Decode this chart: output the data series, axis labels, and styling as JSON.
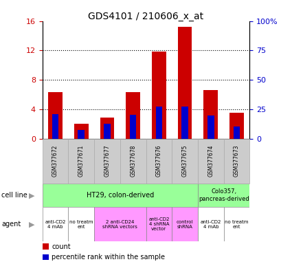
{
  "title": "GDS4101 / 210606_x_at",
  "samples": [
    "GSM377672",
    "GSM377671",
    "GSM377677",
    "GSM377678",
    "GSM377676",
    "GSM377675",
    "GSM377674",
    "GSM377673"
  ],
  "count_values": [
    6.3,
    2.0,
    2.9,
    6.3,
    11.9,
    15.2,
    6.6,
    3.5
  ],
  "percentile_values": [
    21.0,
    7.5,
    12.5,
    20.0,
    27.0,
    27.0,
    19.5,
    10.5
  ],
  "ylim_left": [
    0,
    16
  ],
  "ylim_right": [
    0,
    100
  ],
  "yticks_left": [
    0,
    4,
    8,
    12,
    16
  ],
  "yticks_right": [
    0,
    25,
    50,
    75,
    100
  ],
  "yticklabels_right": [
    "0",
    "25",
    "50",
    "75",
    "100%"
  ],
  "bar_color": "#cc0000",
  "percentile_color": "#0000cc",
  "grid_color": "#000000",
  "cell_line_groups": [
    {
      "label": "HT29, colon-derived",
      "start": 0,
      "end": 5,
      "color": "#99ff99"
    },
    {
      "label": "Colo357,\npancreas-derived",
      "start": 6,
      "end": 7,
      "color": "#99ff99"
    }
  ],
  "agent_groups": [
    {
      "label": "anti-CD2\n4 mAb",
      "start": 0,
      "end": 0,
      "color": "#ffffff"
    },
    {
      "label": "no treatm\nent",
      "start": 1,
      "end": 1,
      "color": "#ffffff"
    },
    {
      "label": "2 anti-CD24\nshRNA vectors",
      "start": 2,
      "end": 3,
      "color": "#ff99ff"
    },
    {
      "label": "anti-CD2\n4 shRNA\nvector",
      "start": 4,
      "end": 4,
      "color": "#ff99ff"
    },
    {
      "label": "control\nshRNA",
      "start": 5,
      "end": 5,
      "color": "#ff99ff"
    },
    {
      "label": "anti-CD2\n4 mAb",
      "start": 6,
      "end": 6,
      "color": "#ffffff"
    },
    {
      "label": "no treatm\nent",
      "start": 7,
      "end": 7,
      "color": "#ffffff"
    }
  ],
  "bg_color": "#ffffff",
  "plot_bg_color": "#ffffff",
  "tick_label_color_left": "#cc0000",
  "tick_label_color_right": "#0000cc",
  "bar_width": 0.55,
  "percentile_bar_width": 0.25,
  "n_samples": 8,
  "sample_box_color": "#cccccc",
  "sample_box_edge": "#aaaaaa"
}
